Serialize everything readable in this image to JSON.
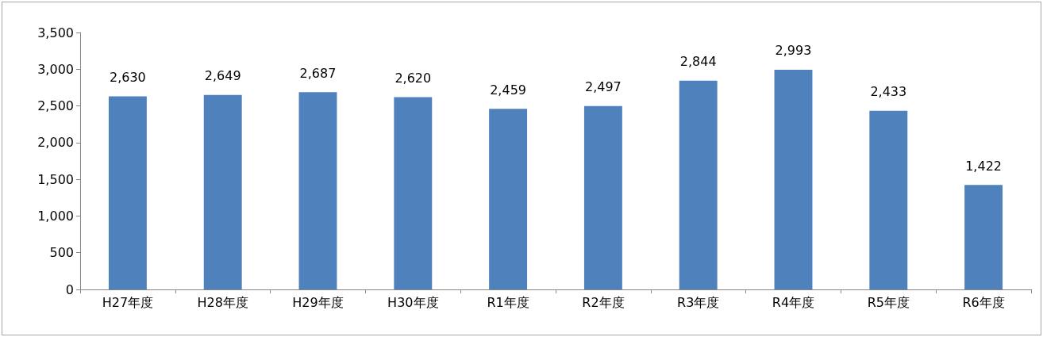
{
  "chart_data": {
    "type": "bar",
    "categories": [
      "H27年度",
      "H28年度",
      "H29年度",
      "H30年度",
      "R1年度",
      "R2年度",
      "R3年度",
      "R4年度",
      "R5年度",
      "R6年度"
    ],
    "values": [
      2630,
      2649,
      2687,
      2620,
      2459,
      2497,
      2844,
      2993,
      2433,
      1422
    ],
    "value_labels": [
      "2,630",
      "2,649",
      "2,687",
      "2,620",
      "2,459",
      "2,497",
      "2,844",
      "2,993",
      "2,433",
      "1,422"
    ],
    "color": "#4f81bd",
    "ylim": [
      0,
      3500
    ],
    "yticks": [
      0,
      500,
      {
        "value": 1000,
        "label": "1,000"
      },
      {
        "value": 1500,
        "label": "1,500"
      },
      {
        "value": 2000,
        "label": "2,000"
      },
      {
        "value": 2500,
        "label": "2,500"
      },
      {
        "value": 3000,
        "label": "3,000"
      },
      {
        "value": 3500,
        "label": "3,500"
      }
    ],
    "grid": false
  }
}
